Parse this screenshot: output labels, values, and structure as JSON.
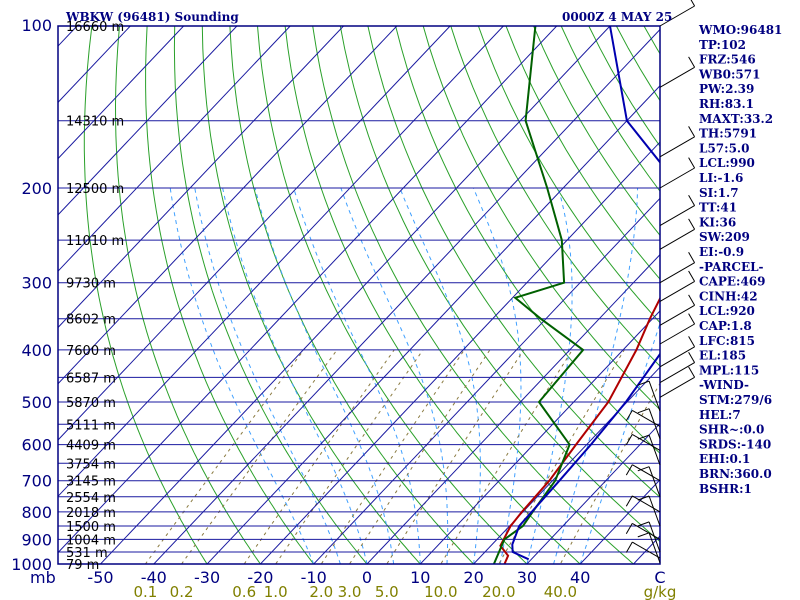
{
  "header": {
    "station": "WBKW (96481) Sounding",
    "time": "0000Z  4 MAY 25"
  },
  "chart_data": {
    "type": "line",
    "title": "WBKW (96481) Sounding",
    "subtitle": "0000Z  4 MAY 25",
    "pressure_labels": [
      "100",
      "200",
      "300",
      "400",
      "500",
      "600",
      "700",
      "800",
      "900",
      "1000"
    ],
    "pressure_unit": "mb",
    "height_labels": [
      {
        "p": 100,
        "label": "16660 m"
      },
      {
        "p": 150,
        "label": "14310 m"
      },
      {
        "p": 200,
        "label": "12500 m"
      },
      {
        "p": 250,
        "label": "11010 m"
      },
      {
        "p": 300,
        "label": "9730 m"
      },
      {
        "p": 350,
        "label": "8602 m"
      },
      {
        "p": 400,
        "label": "7600 m"
      },
      {
        "p": 450,
        "label": "6587 m"
      },
      {
        "p": 500,
        "label": "5870 m"
      },
      {
        "p": 550,
        "label": "5111 m"
      },
      {
        "p": 600,
        "label": "4409 m"
      },
      {
        "p": 650,
        "label": "3754 m"
      },
      {
        "p": 700,
        "label": "3145 m"
      },
      {
        "p": 750,
        "label": "2554 m"
      },
      {
        "p": 800,
        "label": "2018 m"
      },
      {
        "p": 850,
        "label": "1500 m"
      },
      {
        "p": 900,
        "label": "1004 m"
      },
      {
        "p": 950,
        "label": "531 m"
      },
      {
        "p": 1000,
        "label": "79 m"
      }
    ],
    "temperature_ticks": [
      "-50",
      "-40",
      "-30",
      "-20",
      "-10",
      "0",
      "10",
      "20",
      "30",
      "40"
    ],
    "temperature_range": [
      -50,
      50
    ],
    "pressure_range": [
      1000,
      100
    ],
    "mixing_ratio_ticks": [
      "0.1",
      "0.2",
      "0.6",
      "1.0",
      "2.0",
      "3.0",
      "5.0",
      "10.0",
      "20.0",
      "40.0"
    ],
    "mixing_ratio_unit": "g/kg",
    "wind_axis_label": "C",
    "series": [
      {
        "color": "#b00000",
        "style": "solid",
        "points": [
          [
            1000,
            25.8
          ],
          [
            965,
            25.0
          ],
          [
            925,
            21.8
          ],
          [
            850,
            20.2
          ],
          [
            800,
            19.8
          ],
          [
            700,
            19.4
          ],
          [
            600,
            18.0
          ],
          [
            500,
            16.5
          ],
          [
            400,
            12.5
          ],
          [
            350,
            9.5
          ],
          [
            300,
            6.5
          ],
          [
            250,
            3.0
          ],
          [
            200,
            -5.0
          ],
          [
            150,
            -11.0
          ],
          [
            100,
            -14.5
          ]
        ]
      },
      {
        "color": "#006000",
        "style": "solid",
        "points": [
          [
            1000,
            23.8
          ],
          [
            900,
            21.4
          ],
          [
            850,
            22.5
          ],
          [
            800,
            21.8
          ],
          [
            700,
            20.5
          ],
          [
            600,
            16.8
          ],
          [
            500,
            3.5
          ],
          [
            400,
            2.5
          ],
          [
            350,
            -11.0
          ],
          [
            320,
            -19.5
          ],
          [
            300,
            -13.0
          ],
          [
            250,
            -21.0
          ],
          [
            200,
            -33.0
          ],
          [
            150,
            -49.0
          ],
          [
            100,
            -64.0
          ]
        ]
      },
      {
        "color": "#0000b0",
        "style": "solid",
        "points": [
          [
            980,
            29.5
          ],
          [
            950,
            25.2
          ],
          [
            920,
            23.8
          ],
          [
            850,
            21.8
          ],
          [
            700,
            21.3
          ],
          [
            600,
            20.8
          ],
          [
            500,
            19.8
          ],
          [
            400,
            17.5
          ],
          [
            300,
            8.2
          ],
          [
            250,
            2.5
          ],
          [
            200,
            -8.0
          ],
          [
            150,
            -30.0
          ],
          [
            100,
            -50.0
          ]
        ]
      }
    ],
    "wind_barbs_p": [
      100,
      130,
      175,
      200,
      235,
      260,
      300,
      325,
      360,
      390,
      430,
      460,
      490,
      520,
      555,
      585,
      615,
      655,
      700,
      750,
      800,
      850,
      900,
      950,
      975,
      995
    ],
    "grid": true
  },
  "indices": [
    "WMO:96481",
    "TP:102",
    "FRZ:546",
    "WB0:571",
    "PW:2.39",
    "RH:83.1",
    "MAXT:33.2",
    "TH:5791",
    "L57:5.0",
    "LCL:990",
    "LI:-1.6",
    "SI:1.7",
    "TT:41",
    "KI:36",
    "SW:209",
    "EI:-0.9",
    "-PARCEL-",
    "CAPE:469",
    "CINH:42",
    "LCL:920",
    "CAP:1.8",
    "LFC:815",
    "EL:185",
    "MPL:115",
    "-WIND-",
    "STM:279/6",
    "HEL:7",
    "SHR~:0.0",
    "SRDS:-140",
    "EHI:0.1",
    "BRN:360.0",
    "BSHR:1"
  ]
}
